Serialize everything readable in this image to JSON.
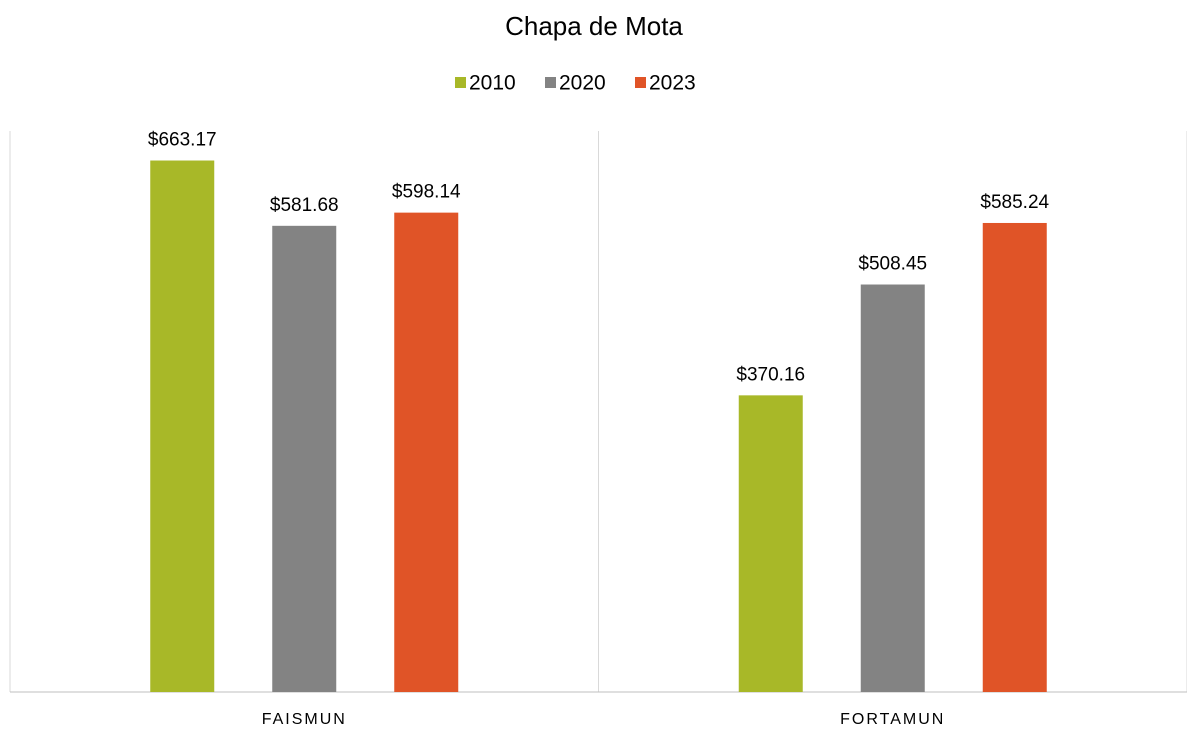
{
  "chart_data": {
    "type": "bar",
    "title": "Chapa de Mota",
    "categories": [
      "FAISMUN",
      "FORTAMUN"
    ],
    "series": [
      {
        "name": "2010",
        "color": "#a8b828",
        "values": [
          663.17,
          370.16
        ],
        "value_labels": [
          "$663.17",
          "$370.16"
        ]
      },
      {
        "name": "2020",
        "color": "#838383",
        "values": [
          581.68,
          508.45
        ],
        "value_labels": [
          "$581.68",
          "$508.45"
        ]
      },
      {
        "name": "2023",
        "color": "#e05427",
        "values": [
          598.14,
          585.24
        ],
        "value_labels": [
          "$598.14",
          "$585.24"
        ]
      }
    ],
    "ylim": [
      0,
      700
    ],
    "legend": "top"
  }
}
